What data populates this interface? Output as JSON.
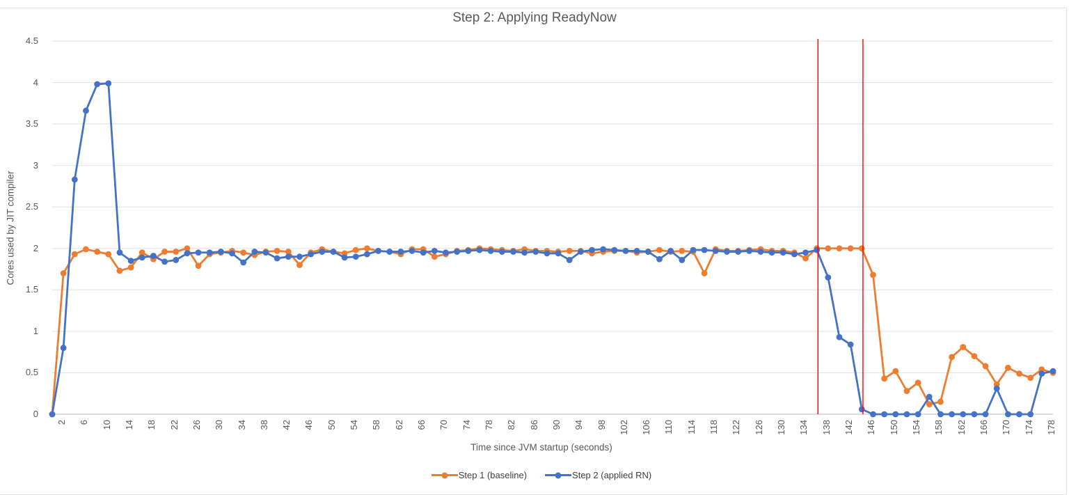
{
  "chart_data": {
    "type": "line",
    "title": "Step 2: Applying ReadyNow",
    "xlabel": "Time since JVM startup (seconds)",
    "ylabel": "Cores used by JIT compiler",
    "grid": true,
    "legend_position": "bottom",
    "xlim": [
      2,
      180
    ],
    "ylim": [
      0,
      4.5
    ],
    "yticks": [
      0,
      0.5,
      1,
      1.5,
      2,
      2.5,
      3,
      3.5,
      4,
      4.5
    ],
    "xticks": [
      2,
      6,
      10,
      14,
      18,
      22,
      26,
      30,
      34,
      38,
      42,
      46,
      50,
      54,
      58,
      62,
      66,
      70,
      74,
      78,
      82,
      86,
      90,
      94,
      98,
      102,
      106,
      110,
      114,
      118,
      122,
      126,
      130,
      134,
      138,
      142,
      146,
      150,
      154,
      158,
      162,
      166,
      170,
      174,
      178
    ],
    "x": [
      2,
      4,
      6,
      8,
      10,
      12,
      14,
      16,
      18,
      20,
      22,
      24,
      26,
      28,
      30,
      32,
      34,
      36,
      38,
      40,
      42,
      44,
      46,
      48,
      50,
      52,
      54,
      56,
      58,
      60,
      62,
      64,
      66,
      68,
      70,
      72,
      74,
      76,
      78,
      80,
      82,
      84,
      86,
      88,
      90,
      92,
      94,
      96,
      98,
      100,
      102,
      104,
      106,
      108,
      110,
      112,
      114,
      116,
      118,
      120,
      122,
      124,
      126,
      128,
      130,
      132,
      134,
      136,
      138,
      140,
      142,
      144,
      146,
      148,
      150,
      152,
      154,
      156,
      158,
      160,
      162,
      164,
      166,
      168,
      170,
      172,
      174,
      176,
      178,
      180
    ],
    "series": [
      {
        "name": "Step 1 (baseline)",
        "color": "#ED7D31",
        "values": [
          0,
          1.7,
          1.93,
          1.99,
          1.96,
          1.93,
          1.73,
          1.77,
          1.95,
          1.87,
          1.96,
          1.96,
          2.0,
          1.79,
          1.93,
          1.95,
          1.97,
          1.95,
          1.92,
          1.96,
          1.97,
          1.96,
          1.8,
          1.95,
          1.99,
          1.96,
          1.94,
          1.98,
          2.0,
          1.97,
          1.96,
          1.93,
          1.99,
          1.99,
          1.9,
          1.93,
          1.97,
          1.98,
          2.0,
          1.99,
          1.98,
          1.97,
          1.99,
          1.97,
          1.97,
          1.96,
          1.97,
          1.97,
          1.94,
          1.96,
          1.97,
          1.97,
          1.95,
          1.96,
          1.98,
          1.96,
          1.97,
          1.96,
          1.7,
          1.99,
          1.97,
          1.97,
          1.98,
          1.99,
          1.97,
          1.97,
          1.95,
          1.88,
          2.0,
          2.0,
          2.0,
          2.0,
          2.0,
          1.68,
          0.43,
          0.52,
          0.28,
          0.38,
          0.12,
          0.15,
          0.69,
          0.81,
          0.7,
          0.58,
          0.36,
          0.56,
          0.49,
          0.44,
          0.54,
          0.5
        ]
      },
      {
        "name": "Step 2 (applied RN)",
        "color": "#4472C4",
        "values": [
          0,
          0.8,
          2.83,
          3.66,
          3.98,
          3.99,
          1.95,
          1.85,
          1.89,
          1.91,
          1.84,
          1.86,
          1.94,
          1.95,
          1.95,
          1.96,
          1.94,
          1.83,
          1.96,
          1.95,
          1.88,
          1.9,
          1.9,
          1.93,
          1.96,
          1.96,
          1.89,
          1.9,
          1.93,
          1.97,
          1.96,
          1.96,
          1.97,
          1.95,
          1.97,
          1.95,
          1.96,
          1.97,
          1.98,
          1.97,
          1.96,
          1.96,
          1.95,
          1.96,
          1.94,
          1.94,
          1.86,
          1.96,
          1.98,
          1.99,
          1.98,
          1.97,
          1.97,
          1.96,
          1.87,
          1.97,
          1.86,
          1.98,
          1.98,
          1.97,
          1.96,
          1.96,
          1.97,
          1.96,
          1.95,
          1.95,
          1.93,
          1.95,
          1.98,
          1.65,
          0.93,
          0.84,
          0.06,
          0,
          0,
          0,
          0,
          0,
          0.21,
          0,
          0,
          0,
          0,
          0,
          0.31,
          0,
          0,
          0,
          0.49,
          0.52
        ]
      }
    ],
    "vlines": [
      {
        "x": 138.2,
        "color": "#FF0000"
      },
      {
        "x": 146.2,
        "color": "#FF0000"
      }
    ]
  },
  "style_colors": {
    "gridline": "#e2e2e2",
    "axis_line": "#c9c9c9",
    "tick_text": "#595959"
  }
}
